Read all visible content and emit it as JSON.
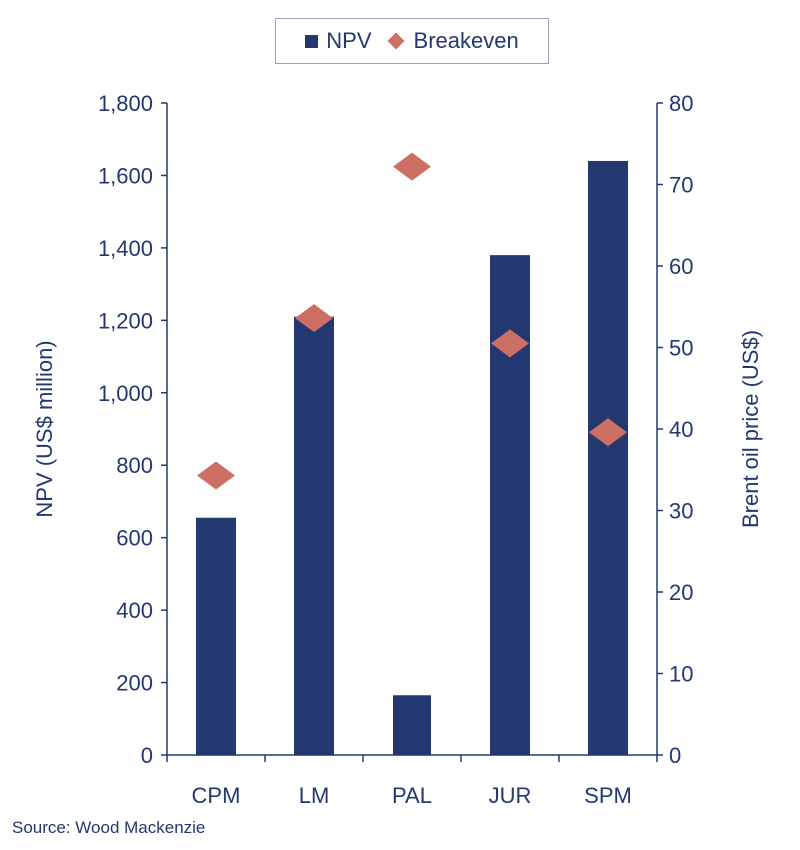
{
  "chart_data": {
    "type": "bar",
    "categories": [
      "CPM",
      "LM",
      "PAL",
      "JUR",
      "SPM"
    ],
    "series": [
      {
        "name": "NPV",
        "type": "bar",
        "axis": "left",
        "values": [
          655,
          1210,
          165,
          1380,
          1640
        ],
        "color": "#233870"
      },
      {
        "name": "Breakeven",
        "type": "scatter",
        "marker": "diamond",
        "axis": "right",
        "values": [
          34.3,
          53.6,
          72.2,
          50.5,
          39.6
        ],
        "color": "#cd6f62"
      }
    ],
    "ylabel": "NPV (US$ million)",
    "y2label": "Brent oil price (US$)",
    "ylim": [
      0,
      1800
    ],
    "y2lim": [
      0,
      80
    ],
    "yticks": [
      "0",
      "200",
      "400",
      "600",
      "800",
      "1,000",
      "1,200",
      "1,400",
      "1,600",
      "1,800"
    ],
    "yticks_values": [
      0,
      200,
      400,
      600,
      800,
      1000,
      1200,
      1400,
      1600,
      1800
    ],
    "y2ticks": [
      "0",
      "10",
      "20",
      "30",
      "40",
      "50",
      "60",
      "70",
      "80"
    ],
    "y2ticks_values": [
      0,
      10,
      20,
      30,
      40,
      50,
      60,
      70,
      80
    ],
    "legend_position": "top-center",
    "grid": false,
    "source": "Source: Wood Mackenzie"
  }
}
